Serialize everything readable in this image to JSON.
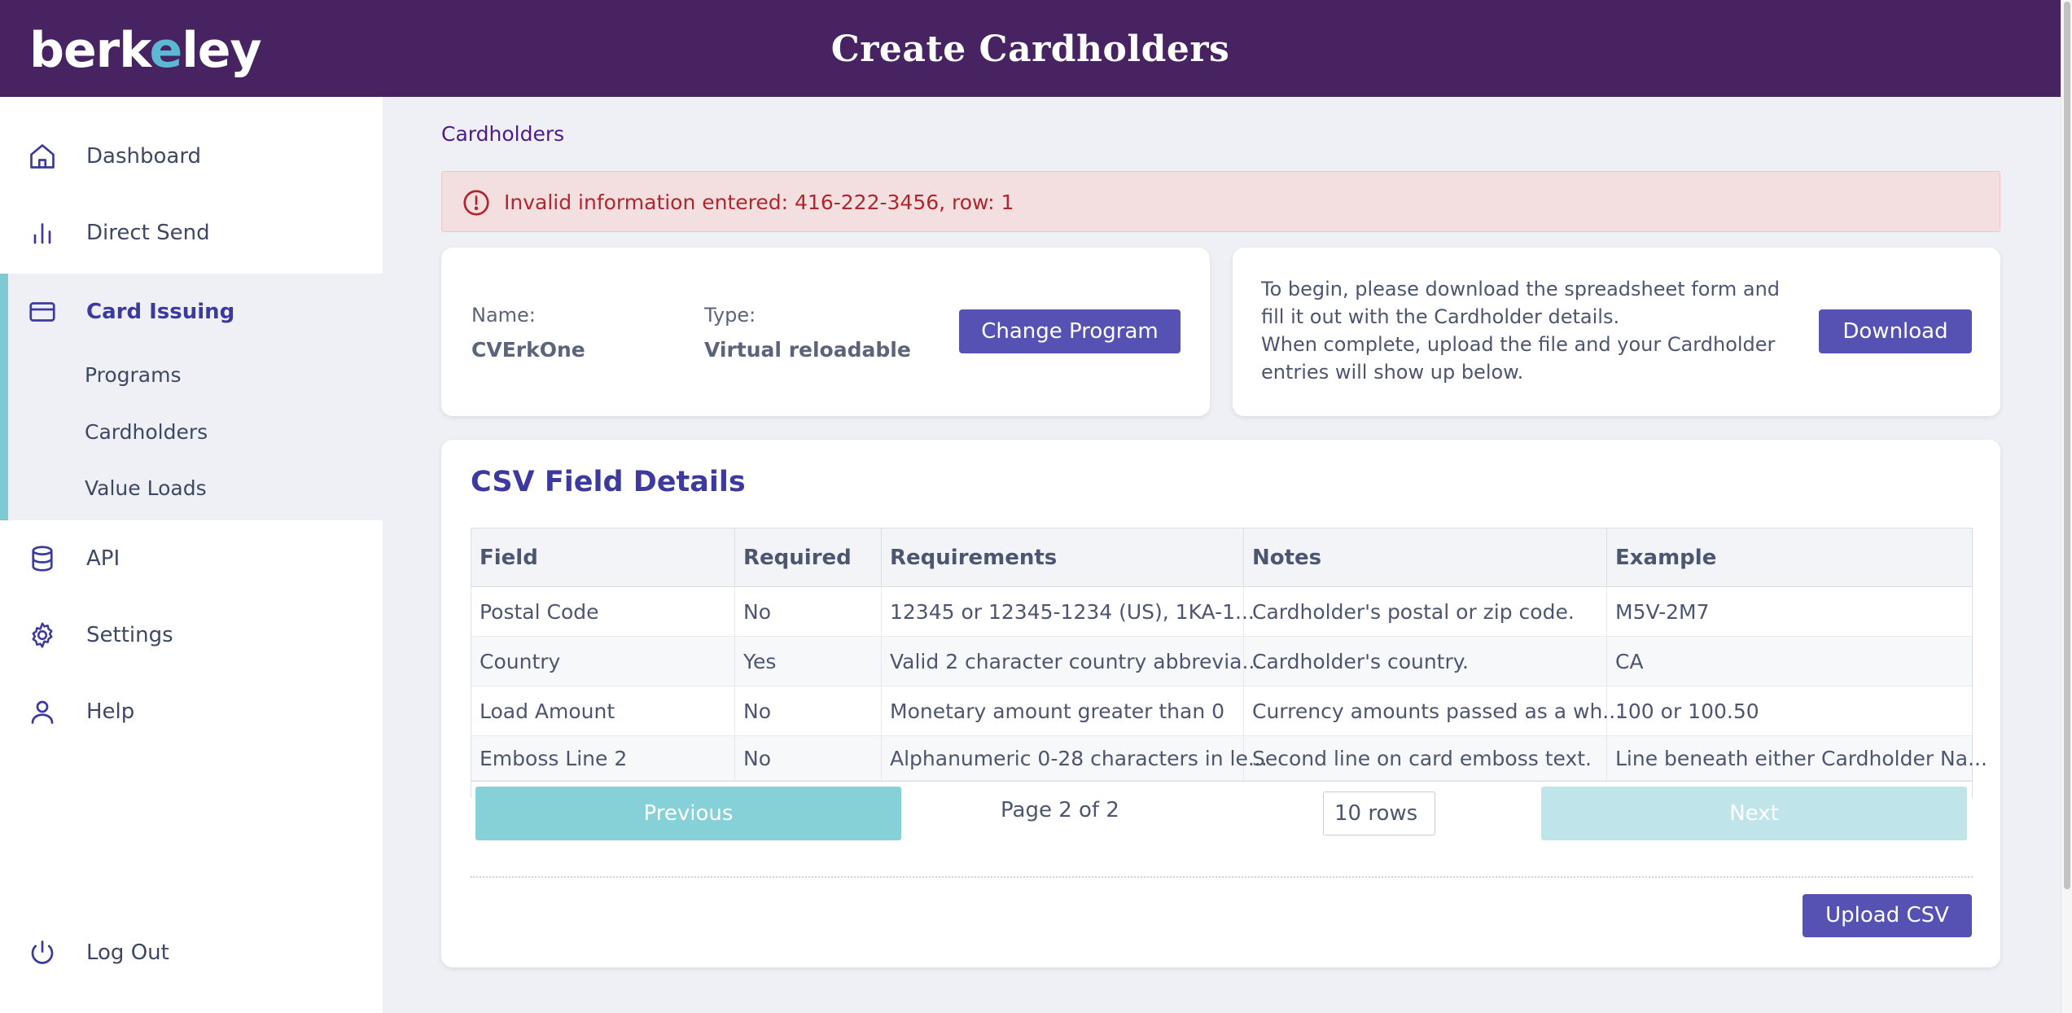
{
  "header": {
    "logo_text": "berkeley",
    "title": "Create Cardholders"
  },
  "sidebar": {
    "items": [
      {
        "label": "Dashboard",
        "icon": "home-icon"
      },
      {
        "label": "Direct Send",
        "icon": "bar-chart-icon"
      },
      {
        "label": "Card Issuing",
        "icon": "credit-card-icon",
        "active": true
      },
      {
        "label": "API",
        "icon": "database-icon"
      },
      {
        "label": "Settings",
        "icon": "gear-icon"
      },
      {
        "label": "Help",
        "icon": "user-icon"
      }
    ],
    "sub_items": [
      "Programs",
      "Cardholders",
      "Value Loads"
    ],
    "logout": {
      "label": "Log Out",
      "icon": "power-icon"
    }
  },
  "breadcrumb": "Cardholders",
  "alert": {
    "message": "Invalid information entered: 416-222-3456, row: 1",
    "icon": "alert-circle-icon"
  },
  "program": {
    "name_label": "Name:",
    "name_value": "CVErkOne",
    "type_label": "Type:",
    "type_value": "Virtual reloadable",
    "change_button": "Change Program"
  },
  "download": {
    "instructions_1": "To begin, please download the spreadsheet form and fill it out with the Cardholder details.",
    "instructions_2": "When complete, upload the file and your Cardholder entries will show up below.",
    "button": "Download"
  },
  "csv": {
    "title": "CSV Field Details",
    "columns": [
      "Field",
      "Required",
      "Requirements",
      "Notes",
      "Example"
    ],
    "rows": [
      [
        "Postal Code",
        "No",
        "12345 or 12345-1234 (US), 1KA-1...",
        "Cardholder's postal or zip code.",
        "M5V-2M7"
      ],
      [
        "Country",
        "Yes",
        "Valid 2 character country abbrevia...",
        "Cardholder's country.",
        "CA"
      ],
      [
        "Load Amount",
        "No",
        "Monetary amount greater than 0",
        "Currency amounts passed as a wh...",
        "100 or 100.50"
      ],
      [
        "Emboss Line 2",
        "No",
        "Alphanumeric 0-28 characters in le...",
        "Second line on card emboss text.",
        "Line beneath either Cardholder Na..."
      ]
    ],
    "pagination": {
      "previous": "Previous",
      "page_info": "Page 2 of 2",
      "rows_per_page": "10 rows",
      "next": "Next"
    },
    "upload_button": "Upload CSV"
  },
  "colors": {
    "header_bg": "#472362",
    "accent": "#5652b4",
    "sidebar_active_bar": "#7fc9d3",
    "alert_bg": "#f4dfe0",
    "alert_text": "#b0262d",
    "pager_prev": "#86d0d8",
    "pager_next_disabled": "#bfe5ea"
  }
}
